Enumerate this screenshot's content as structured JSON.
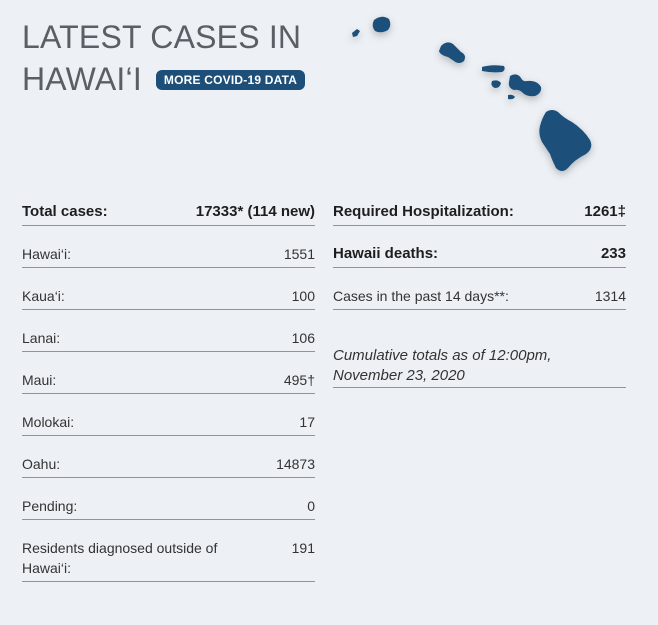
{
  "header": {
    "title": [
      "LATEST CASES IN",
      "HAWAI‘I"
    ],
    "button": "MORE COVID-19 DATA"
  },
  "left": {
    "rows": [
      {
        "label": "Total cases:",
        "value": "17333* (114 new)"
      },
      {
        "label": "Hawai‘i:",
        "value": "1551"
      },
      {
        "label": "Kaua‘i:",
        "value": "100"
      },
      {
        "label": "Lanai:",
        "value": "106"
      },
      {
        "label": "Maui:",
        "value": "495†"
      },
      {
        "label": "Molokai:",
        "value": "17"
      },
      {
        "label": "Oahu:",
        "value": "14873"
      },
      {
        "label": "Pending:",
        "value": "0"
      },
      {
        "label": "Residents diagnosed outside of Hawai‘i:",
        "value": "191"
      }
    ]
  },
  "right": {
    "rows": [
      {
        "label": "Required Hospitalization:",
        "value": "1261‡"
      },
      {
        "label": "Hawaii deaths:",
        "value": "233"
      },
      {
        "label": "Cases in the past 14 days**:",
        "value": "1314"
      }
    ],
    "note": [
      "Cumulative totals as of 12:00pm,",
      "November 23, 2020"
    ]
  }
}
